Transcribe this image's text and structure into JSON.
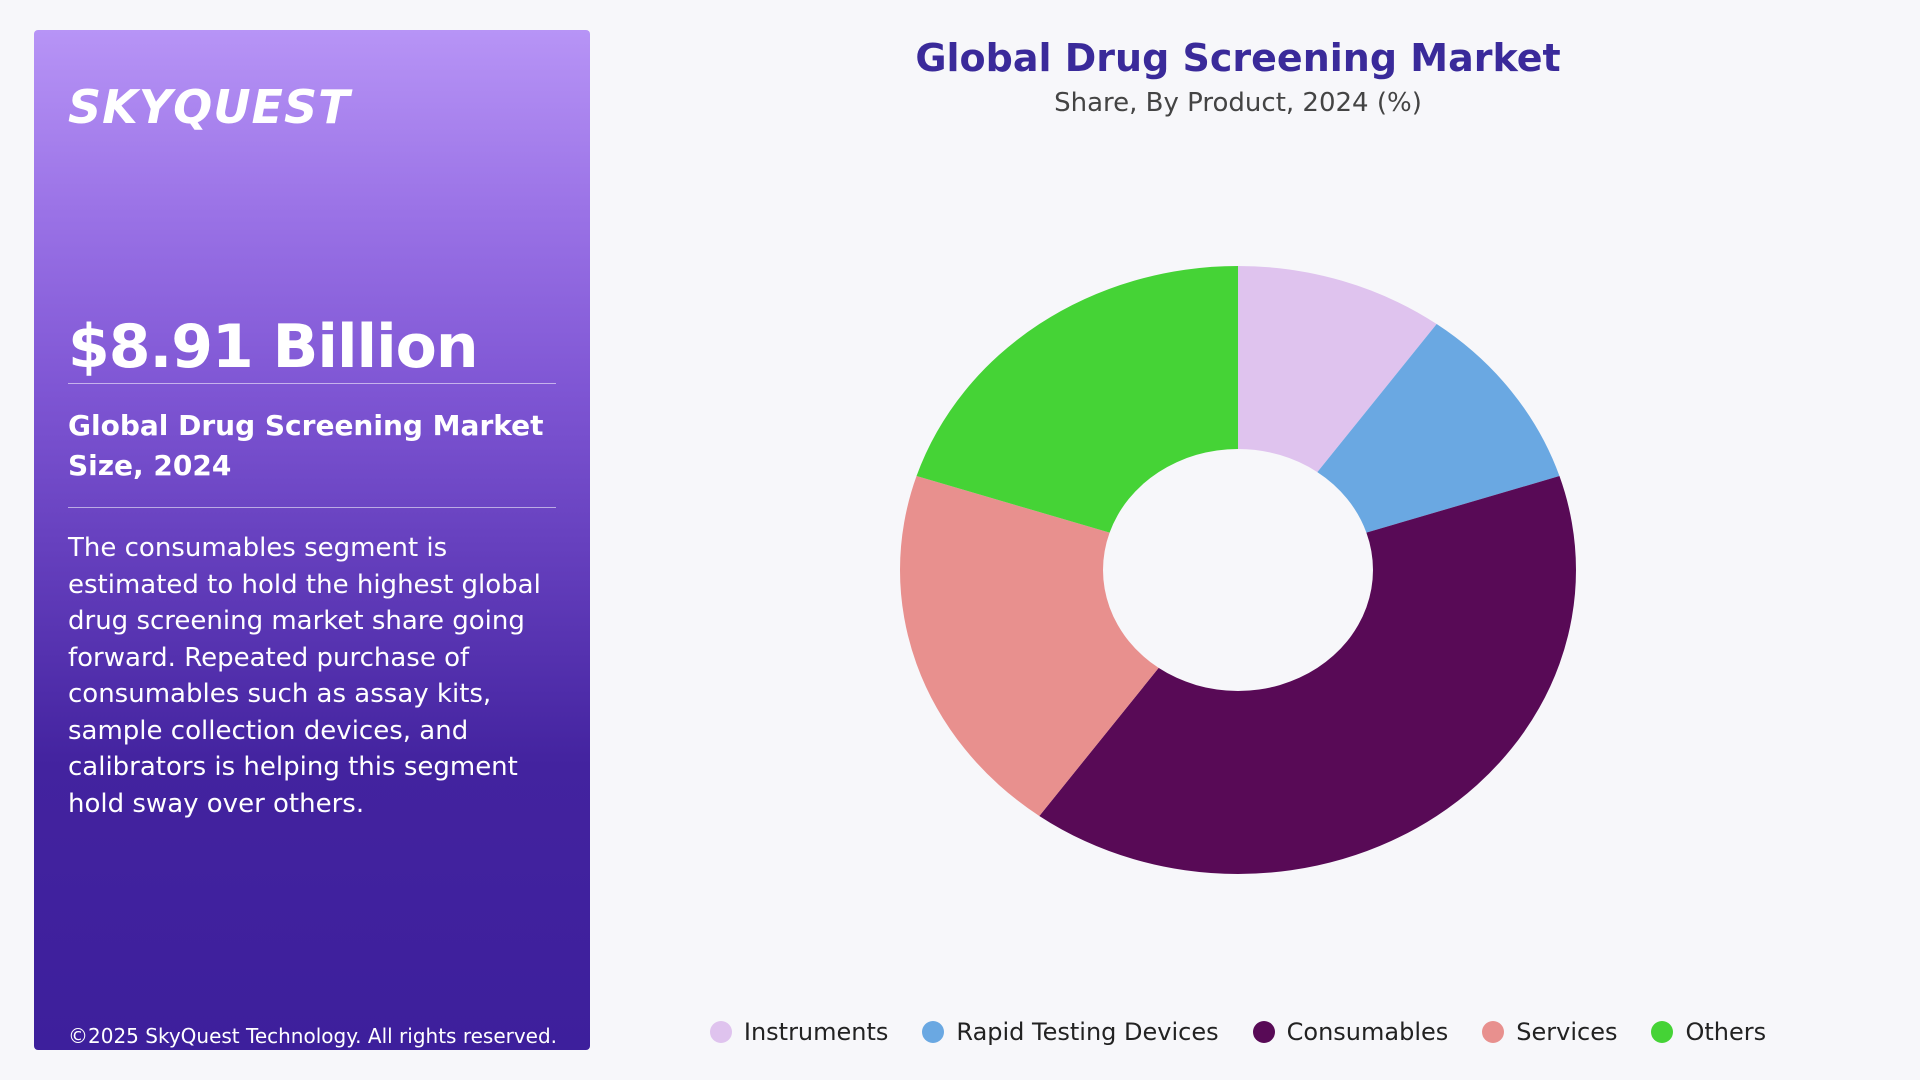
{
  "brand": {
    "logo_text": "SKYQUEST"
  },
  "panel": {
    "headline": "$8.91 Billion",
    "subtitle": "Global Drug Screening Market Size, 2024",
    "description": "The consumables segment is estimated to hold the highest global drug screening market share going forward. Repeated purchase of consumables such as assay kits, sample collection devices, and calibrators is helping this segment hold sway over others.",
    "copyright": "©2025 SkyQuest Technology. All rights reserved."
  },
  "chart_data": {
    "type": "pie",
    "variant": "donut",
    "title": "Global Drug Screening Market",
    "subtitle": "Share, By Product, 2024 (%)",
    "legend_position": "bottom",
    "categories": [
      "Instruments",
      "Rapid Testing Devices",
      "Consumables",
      "Services",
      "Others"
    ],
    "values": [
      10,
      10,
      40,
      20,
      20
    ],
    "colors": [
      "#dfc3ee",
      "#6aa8e2",
      "#580a56",
      "#e8908e",
      "#45d336"
    ]
  }
}
